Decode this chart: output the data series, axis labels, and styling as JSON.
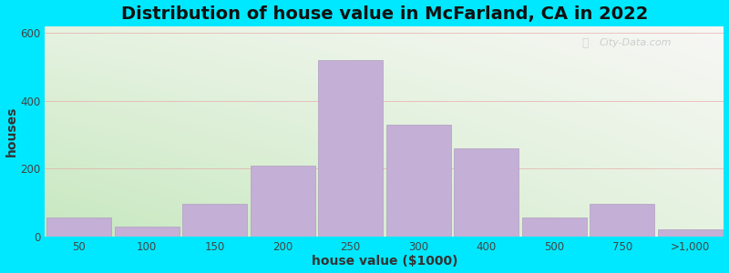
{
  "title": "Distribution of house value in McFarland, CA in 2022",
  "xlabel": "house value ($1000)",
  "ylabel": "houses",
  "bar_labels": [
    "50",
    "100",
    "150",
    "200",
    "250",
    "300",
    "400",
    "500",
    "750",
    ">1,000"
  ],
  "bar_left_edges": [
    0,
    1,
    2,
    3,
    4,
    5,
    6,
    7,
    8,
    9
  ],
  "bar_heights": [
    55,
    30,
    95,
    210,
    520,
    330,
    260,
    55,
    95,
    20
  ],
  "bar_widths": [
    1,
    1,
    1,
    1,
    1,
    1,
    1,
    1,
    1,
    1
  ],
  "bar_color": "#c4afd6",
  "bar_edge_color": "#b09fc0",
  "ylim": [
    0,
    620
  ],
  "yticks": [
    0,
    200,
    400,
    600
  ],
  "outer_bg": "#00e8ff",
  "grid_color": "#e8a0a0",
  "title_fontsize": 14,
  "axis_label_fontsize": 10,
  "tick_fontsize": 8.5,
  "watermark": "City-Data.com"
}
